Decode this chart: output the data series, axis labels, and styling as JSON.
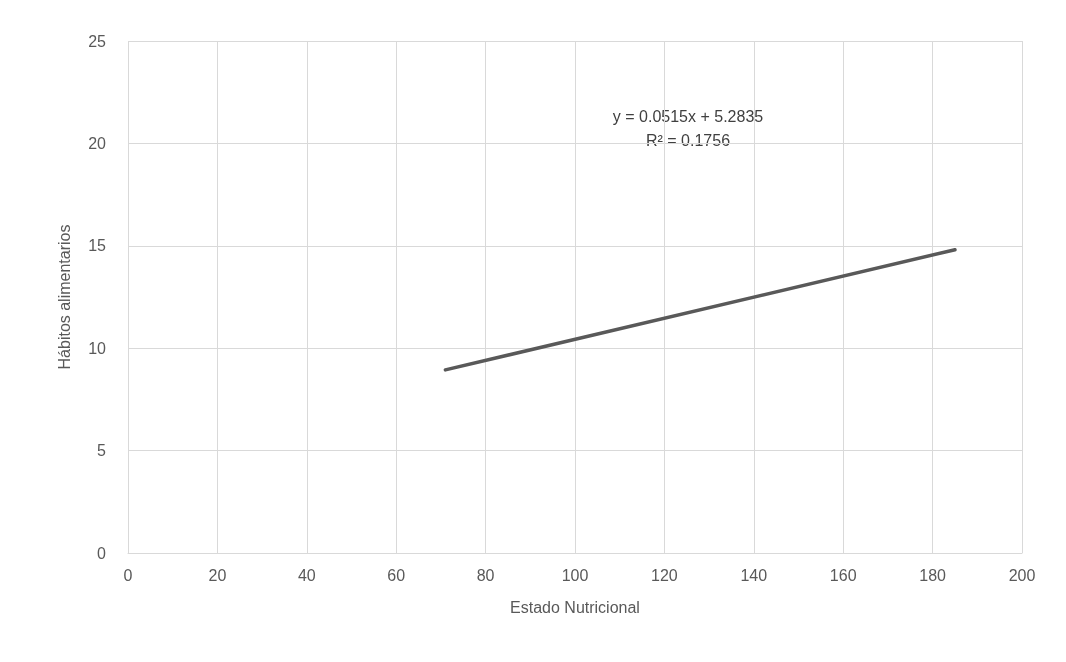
{
  "chart_data": {
    "type": "line",
    "xlabel": "Estado Nutricional",
    "ylabel": "Hábitos alimentarios",
    "annotations": [
      "y = 0.0515x + 5.2835",
      "R² = 0.1756"
    ],
    "series": [
      {
        "color": "#595959",
        "x": [
          71,
          185
        ],
        "values": [
          8.94,
          14.81
        ]
      }
    ],
    "xlim": [
      0,
      200
    ],
    "xticks": [
      0,
      20,
      40,
      60,
      80,
      100,
      120,
      140,
      160,
      180,
      200
    ],
    "ylim": [
      0,
      25
    ],
    "yticks": [
      0,
      5,
      10,
      15,
      20,
      25
    ],
    "grid": true,
    "marker": "none",
    "line_style": "solid"
  }
}
